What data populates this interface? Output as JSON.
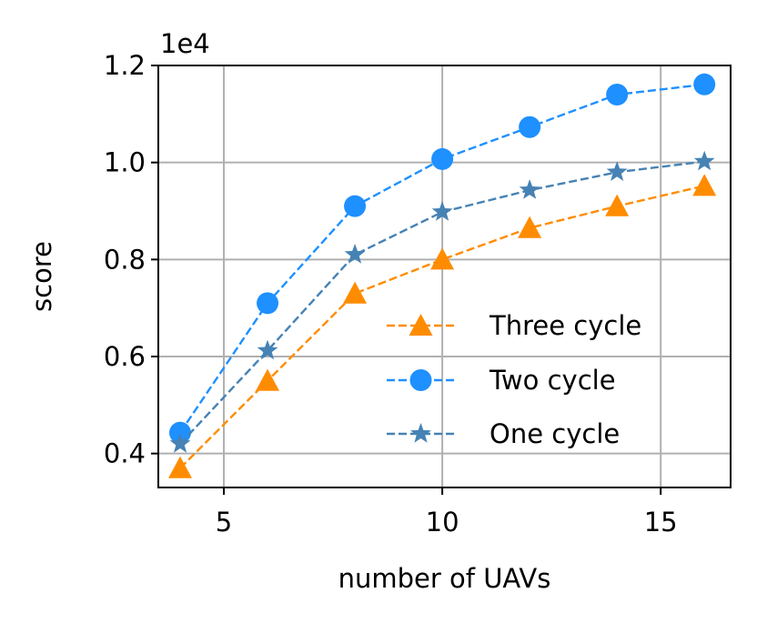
{
  "chart_data": {
    "type": "line",
    "title": "",
    "xlabel": "number of UAVs",
    "ylabel": "score",
    "offset_label": "1e4",
    "xlim": [
      3.5,
      16.6
    ],
    "ylim": [
      0.33,
      1.2
    ],
    "xticks": [
      5,
      10,
      15
    ],
    "xtick_labels": [
      "5",
      "10",
      "15"
    ],
    "yticks": [
      0.4,
      0.6,
      0.8,
      1.0,
      1.2
    ],
    "ytick_labels": [
      "0.4",
      "0.6",
      "0.8",
      "1.0",
      "1.2"
    ],
    "grid": true,
    "legend_position": "lower-right",
    "x": [
      4,
      6,
      8,
      10,
      12,
      14,
      16
    ],
    "series": [
      {
        "name": "Three cycle",
        "color": "#ff8c00",
        "marker": "triangle",
        "values": [
          0.37,
          0.55,
          0.73,
          0.8,
          0.865,
          0.91,
          0.952
        ]
      },
      {
        "name": "Two cycle",
        "color": "#1e90ff",
        "marker": "circle",
        "values": [
          0.443,
          0.71,
          0.91,
          1.007,
          1.073,
          1.14,
          1.161
        ]
      },
      {
        "name": "One cycle",
        "color": "#4682b4",
        "marker": "star",
        "values": [
          0.42,
          0.612,
          0.81,
          0.898,
          0.943,
          0.98,
          1.002
        ]
      }
    ]
  }
}
